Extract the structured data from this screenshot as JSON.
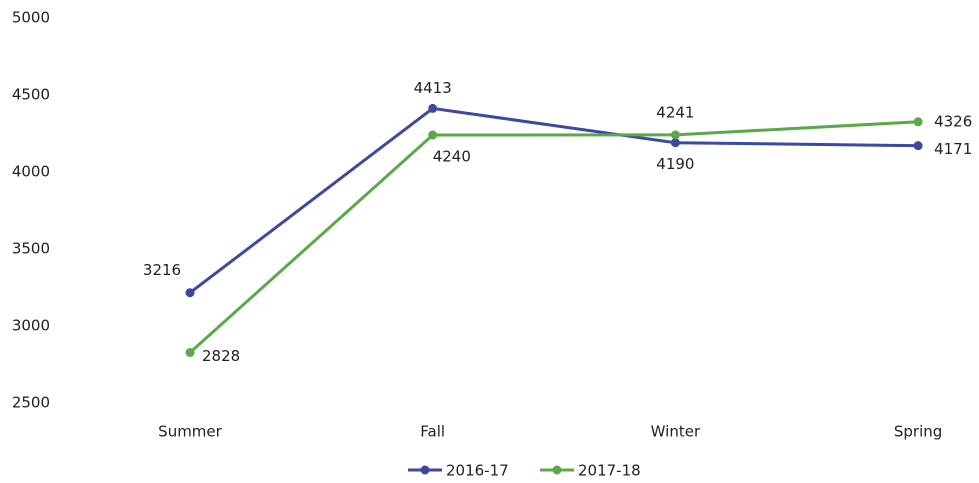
{
  "chart_data": {
    "type": "line",
    "categories": [
      "Summer",
      "Fall",
      "Winter",
      "Spring"
    ],
    "series": [
      {
        "name": "2016-17",
        "color": "#3b4aa0",
        "values": [
          3216,
          4413,
          4190,
          4171
        ]
      },
      {
        "name": "2017-18",
        "color": "#5ba84a",
        "values": [
          2828,
          4240,
          4241,
          4326
        ]
      }
    ],
    "ylim": [
      2500,
      5000
    ],
    "yticks": [
      2500,
      3000,
      3500,
      4000,
      4500,
      5000
    ],
    "grid": false,
    "legend": "bottom"
  }
}
